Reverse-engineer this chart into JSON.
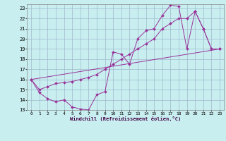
{
  "xlabel": "Windchill (Refroidissement éolien,°C)",
  "bg_color": "#c8eef0",
  "grid_color": "#a0b8cc",
  "line_color": "#993399",
  "xlim": [
    -0.5,
    23.5
  ],
  "ylim": [
    13,
    23.4
  ],
  "xticks": [
    0,
    1,
    2,
    3,
    4,
    5,
    6,
    7,
    8,
    9,
    10,
    11,
    12,
    13,
    14,
    15,
    16,
    17,
    18,
    19,
    20,
    21,
    22,
    23
  ],
  "yticks": [
    13,
    14,
    15,
    16,
    17,
    18,
    19,
    20,
    21,
    22,
    23
  ],
  "series": [
    {
      "x": [
        0,
        1,
        2,
        3,
        4,
        5,
        6,
        7,
        8,
        9,
        10,
        11,
        12,
        13,
        14,
        15,
        16,
        17,
        18,
        19,
        20,
        21,
        22,
        23
      ],
      "y": [
        16,
        14.7,
        14.1,
        13.8,
        14.0,
        13.3,
        13.1,
        13.0,
        14.5,
        14.8,
        18.7,
        18.5,
        17.5,
        20.0,
        20.8,
        21.0,
        22.3,
        23.3,
        23.2,
        19.0,
        22.7,
        21.0,
        19.0,
        19.0
      ],
      "marker": true
    },
    {
      "x": [
        0,
        1,
        2,
        3,
        4,
        5,
        6,
        7,
        8,
        9,
        10,
        11,
        12,
        13,
        14,
        15,
        16,
        17,
        18,
        19,
        20,
        21,
        22,
        23
      ],
      "y": [
        16,
        15.0,
        15.3,
        15.6,
        15.7,
        15.8,
        16.0,
        16.2,
        16.5,
        17.0,
        17.5,
        18.0,
        18.5,
        19.0,
        19.5,
        20.0,
        21.0,
        21.5,
        22.0,
        22.0,
        22.7,
        21.0,
        19.0,
        19.0
      ],
      "marker": true
    },
    {
      "x": [
        0,
        23
      ],
      "y": [
        16,
        19.0
      ],
      "marker": false
    }
  ]
}
